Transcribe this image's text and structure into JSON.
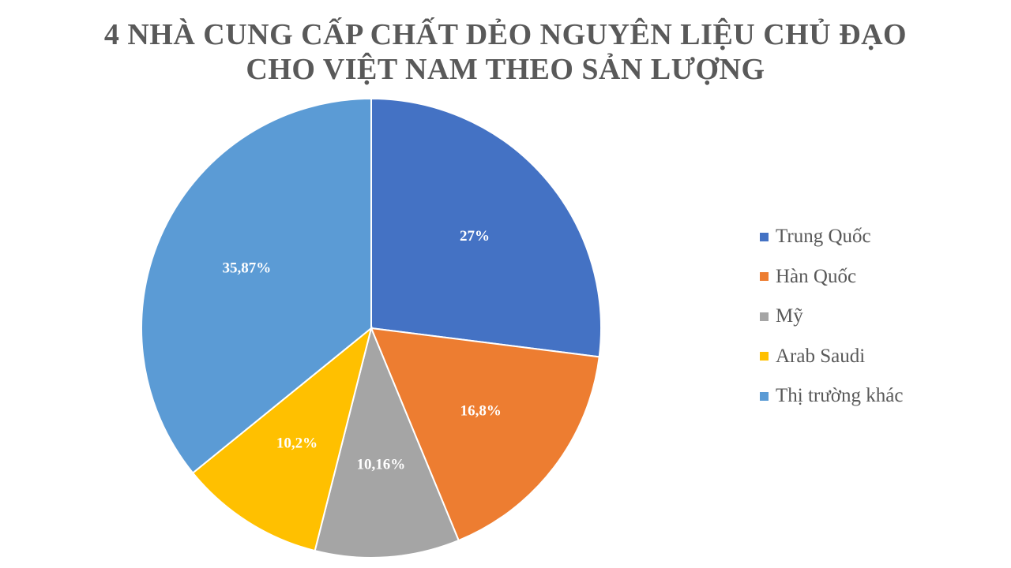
{
  "chart_data": {
    "type": "pie",
    "title_lines": [
      "4 NHÀ CUNG CẤP CHẤT DẺO NGUYÊN LIỆU CHỦ ĐẠO",
      "CHO VIỆT NAM THEO SẢN LƯỢNG"
    ],
    "slices": [
      {
        "name": "Trung Quốc",
        "value": 27,
        "label": "27%",
        "color": "#4472C4"
      },
      {
        "name": "Hàn Quốc",
        "value": 16.8,
        "label": "16,8%",
        "color": "#ED7D31"
      },
      {
        "name": "Mỹ",
        "value": 10.16,
        "label": "10,16%",
        "color": "#A5A5A5"
      },
      {
        "name": "Arab Saudi",
        "value": 10.2,
        "label": "10,2%",
        "color": "#FFC000"
      },
      {
        "name": "Thị trường khác",
        "value": 35.87,
        "label": "35,87%",
        "color": "#5B9BD5"
      }
    ],
    "start_angle": "12 o'clock",
    "direction": "clockwise",
    "legend_position": "right",
    "data_labels": "inside"
  }
}
